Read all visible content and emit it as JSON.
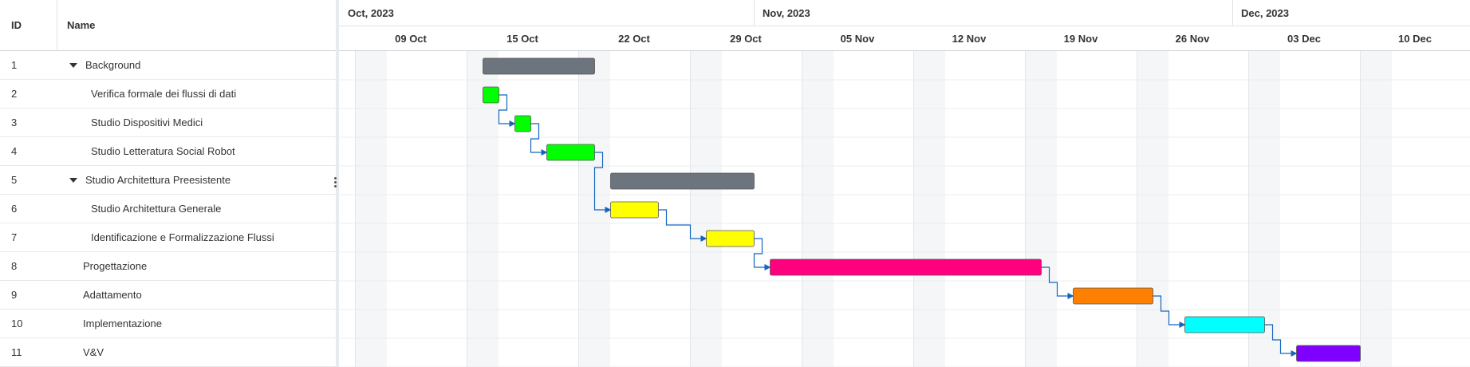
{
  "grid": {
    "id_header": "ID",
    "name_header": "Name",
    "rows": [
      {
        "id": "1",
        "name": "Background",
        "level": 0,
        "collapsible": true
      },
      {
        "id": "2",
        "name": "Verifica formale dei flussi di dati",
        "level": 1,
        "collapsible": false
      },
      {
        "id": "3",
        "name": "Studio Dispositivi Medici",
        "level": 1,
        "collapsible": false
      },
      {
        "id": "4",
        "name": "Studio Letteratura Social Robot",
        "level": 1,
        "collapsible": false
      },
      {
        "id": "5",
        "name": "Studio Architettura Preesistente",
        "level": 0,
        "collapsible": true
      },
      {
        "id": "6",
        "name": "Studio Architettura Generale",
        "level": 1,
        "collapsible": false
      },
      {
        "id": "7",
        "name": "Identificazione e Formalizzazione Flussi",
        "level": 1,
        "collapsible": false
      },
      {
        "id": "8",
        "name": "Progettazione",
        "level": 0,
        "collapsible": false
      },
      {
        "id": "9",
        "name": "Adattamento",
        "level": 0,
        "collapsible": false
      },
      {
        "id": "10",
        "name": "Implementazione",
        "level": 0,
        "collapsible": false
      },
      {
        "id": "11",
        "name": "V&V",
        "level": 0,
        "collapsible": false
      }
    ]
  },
  "timeline": {
    "months": [
      "Oct, 2023",
      "Nov, 2023",
      "Dec, 2023"
    ],
    "weeks": [
      "09 Oct",
      "15 Oct",
      "22 Oct",
      "29 Oct",
      "05 Nov",
      "12 Nov",
      "19 Nov",
      "26 Nov",
      "03 Dec",
      "10 Dec",
      "1..."
    ]
  },
  "tasks": [
    {
      "id": "1",
      "start": "2023-10-15",
      "end": "2023-10-22",
      "color": "#6c757d"
    },
    {
      "id": "2",
      "start": "2023-10-15",
      "end": "2023-10-16",
      "color": "#00ff00"
    },
    {
      "id": "3",
      "start": "2023-10-17",
      "end": "2023-10-18",
      "color": "#00ff00"
    },
    {
      "id": "4",
      "start": "2023-10-19",
      "end": "2023-10-22",
      "color": "#00ff00"
    },
    {
      "id": "5",
      "start": "2023-10-23",
      "end": "2023-11-01",
      "color": "#6c757d"
    },
    {
      "id": "6",
      "start": "2023-10-23",
      "end": "2023-10-26",
      "color": "#ffff00"
    },
    {
      "id": "7",
      "start": "2023-10-29",
      "end": "2023-11-01",
      "color": "#ffff00"
    },
    {
      "id": "8",
      "start": "2023-11-02",
      "end": "2023-11-19",
      "color": "#ff007f"
    },
    {
      "id": "9",
      "start": "2023-11-21",
      "end": "2023-11-26",
      "color": "#ff8000"
    },
    {
      "id": "10",
      "start": "2023-11-28",
      "end": "2023-12-03",
      "color": "#00ffff"
    },
    {
      "id": "11",
      "start": "2023-12-05",
      "end": "2023-12-09",
      "color": "#8000ff"
    }
  ],
  "dependencies": [
    [
      "2",
      "3"
    ],
    [
      "3",
      "4"
    ],
    [
      "4",
      "6"
    ],
    [
      "6",
      "7"
    ],
    [
      "7",
      "8"
    ],
    [
      "8",
      "9"
    ],
    [
      "9",
      "10"
    ],
    [
      "10",
      "11"
    ]
  ],
  "colors": {
    "weekend": "#f5f6f8",
    "grid_line": "#e3e6ea",
    "arrow": "#1565c0",
    "bar_border": "#555555"
  }
}
